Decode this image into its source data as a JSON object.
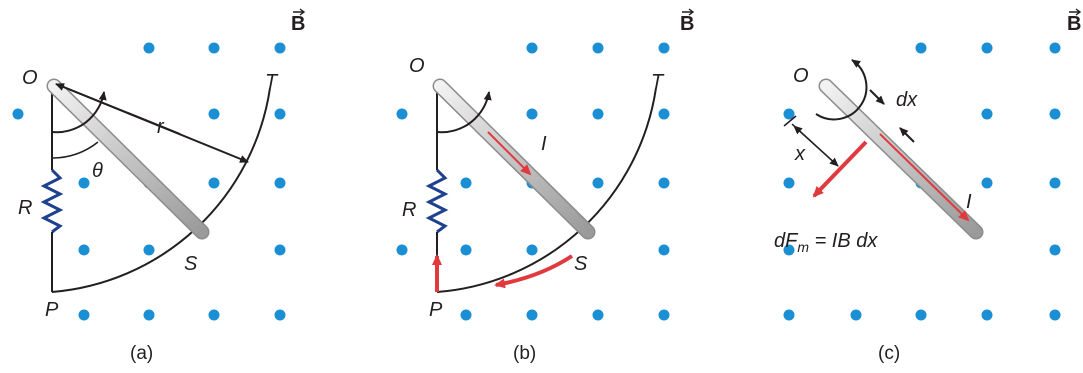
{
  "colors": {
    "dot": "#1a8fd4",
    "line": "#231f20",
    "current": "#e03a3e",
    "resistor": "#1f3f8f",
    "rod": "#c8c8c8"
  },
  "field_symbol": "B",
  "panels": [
    {
      "caption": "(a)",
      "labels": {
        "O": "O",
        "T": "T",
        "r": "r",
        "theta": "θ",
        "R": "R",
        "S": "S",
        "P": "P"
      }
    },
    {
      "caption": "(b)",
      "labels": {
        "O": "O",
        "T": "T",
        "I": "I",
        "R": "R",
        "S": "S",
        "P": "P"
      }
    },
    {
      "caption": "(c)",
      "labels": {
        "O": "O",
        "dx": "dx",
        "x": "x",
        "I": "I",
        "force_main": "dF",
        "force_sub": "m",
        "force_eq": " = IB dx"
      }
    }
  ]
}
